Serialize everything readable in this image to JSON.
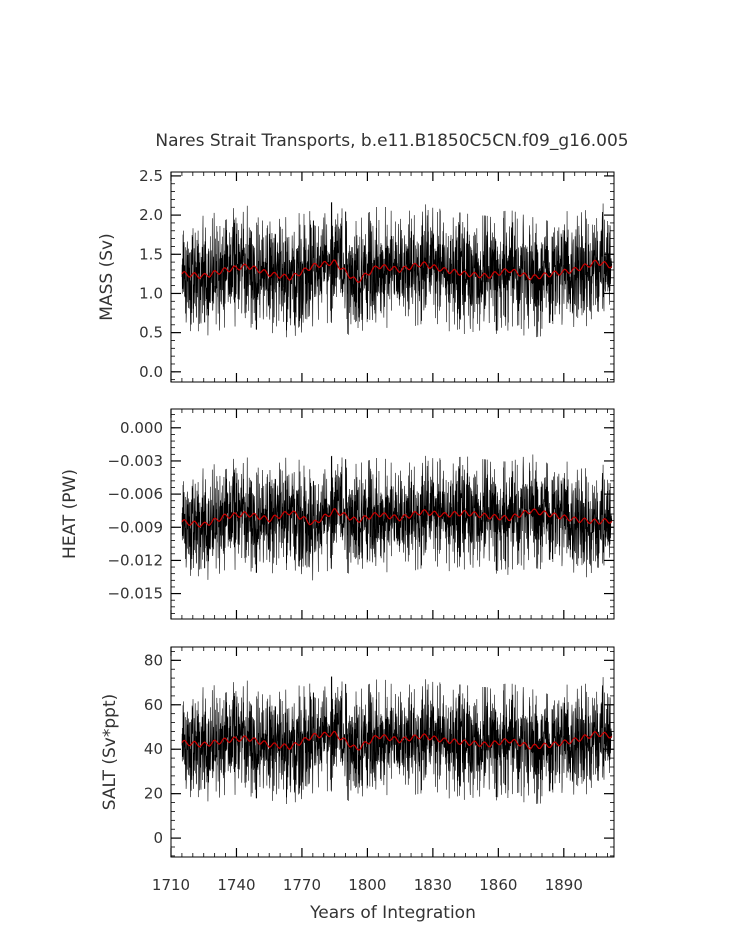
{
  "title": "Nares Strait Transports, b.e11.B1850C5CN.f09_g16.005",
  "xlabel": "Years of Integration",
  "colors": {
    "raw": "#000000",
    "smoothed": "#cc0000",
    "axes": "#000000",
    "text": "#333333"
  },
  "chart_data": [
    {
      "type": "line",
      "name": "mass",
      "ylabel": "MASS (Sv)",
      "xlim": [
        1710,
        1913
      ],
      "ylim": [
        -0.13,
        2.55
      ],
      "x_ticks": [
        1710,
        1740,
        1770,
        1800,
        1830,
        1860,
        1890
      ],
      "y_ticks": [
        0.0,
        0.5,
        1.0,
        1.5,
        2.0,
        2.5
      ],
      "y_tick_labels": [
        "0.0",
        "0.5",
        "1.0",
        "1.5",
        "2.0",
        "2.5"
      ],
      "series": [
        {
          "name": "annual",
          "style": "thin black line",
          "x_start": 1715,
          "x_end": 1912,
          "mean": 1.3,
          "range": [
            -0.1,
            2.5
          ]
        },
        {
          "name": "smoothed",
          "style": "red line",
          "x": [
            1715,
            1725,
            1735,
            1745,
            1755,
            1765,
            1775,
            1785,
            1795,
            1805,
            1815,
            1825,
            1835,
            1845,
            1855,
            1865,
            1875,
            1885,
            1895,
            1905,
            1912
          ],
          "values": [
            1.25,
            1.22,
            1.3,
            1.35,
            1.25,
            1.2,
            1.35,
            1.4,
            1.15,
            1.35,
            1.3,
            1.38,
            1.3,
            1.25,
            1.22,
            1.3,
            1.2,
            1.25,
            1.3,
            1.4,
            1.35
          ]
        }
      ]
    },
    {
      "type": "line",
      "name": "heat",
      "ylabel": "HEAT (PW)",
      "xlim": [
        1710,
        1913
      ],
      "ylim": [
        -0.0173,
        0.0017
      ],
      "x_ticks": [
        1710,
        1740,
        1770,
        1800,
        1830,
        1860,
        1890
      ],
      "y_ticks": [
        0.0,
        -0.003,
        -0.006,
        -0.009,
        -0.012,
        -0.015
      ],
      "y_tick_labels": [
        "0.000",
        "−0.003",
        "−0.006",
        "−0.009",
        "−0.012",
        "−0.015"
      ],
      "series": [
        {
          "name": "annual",
          "style": "thin black line",
          "x_start": 1715,
          "x_end": 1912,
          "mean": -0.0083,
          "range": [
            -0.0168,
            0.001
          ]
        },
        {
          "name": "smoothed",
          "style": "red line",
          "x": [
            1715,
            1725,
            1735,
            1745,
            1755,
            1765,
            1775,
            1785,
            1795,
            1805,
            1815,
            1825,
            1835,
            1845,
            1855,
            1865,
            1875,
            1885,
            1895,
            1905,
            1912
          ],
          "values": [
            -0.0085,
            -0.0088,
            -0.008,
            -0.0078,
            -0.0083,
            -0.0076,
            -0.0087,
            -0.0075,
            -0.0084,
            -0.0078,
            -0.0082,
            -0.0076,
            -0.0079,
            -0.0077,
            -0.008,
            -0.0082,
            -0.0075,
            -0.0079,
            -0.0083,
            -0.0085,
            -0.0084
          ]
        }
      ]
    },
    {
      "type": "line",
      "name": "salt",
      "ylabel": "SALT (Sv*ppt)",
      "xlim": [
        1710,
        1913
      ],
      "ylim": [
        -8.5,
        86
      ],
      "x_ticks": [
        1710,
        1740,
        1770,
        1800,
        1830,
        1860,
        1890
      ],
      "y_ticks": [
        0,
        20,
        40,
        60,
        80
      ],
      "y_tick_labels": [
        "0",
        "20",
        "40",
        "60",
        "80"
      ],
      "series": [
        {
          "name": "annual",
          "style": "thin black line",
          "x_start": 1715,
          "x_end": 1912,
          "mean": 43,
          "range": [
            -4,
            85
          ]
        },
        {
          "name": "smoothed",
          "style": "red line",
          "x": [
            1715,
            1725,
            1735,
            1745,
            1755,
            1765,
            1775,
            1785,
            1795,
            1805,
            1815,
            1825,
            1835,
            1845,
            1855,
            1865,
            1875,
            1885,
            1895,
            1905,
            1912
          ],
          "values": [
            43,
            42,
            44,
            45,
            42,
            41,
            46,
            47,
            40,
            46,
            44,
            46,
            44,
            43,
            42,
            44,
            41,
            42,
            44,
            47,
            46
          ]
        }
      ]
    }
  ]
}
